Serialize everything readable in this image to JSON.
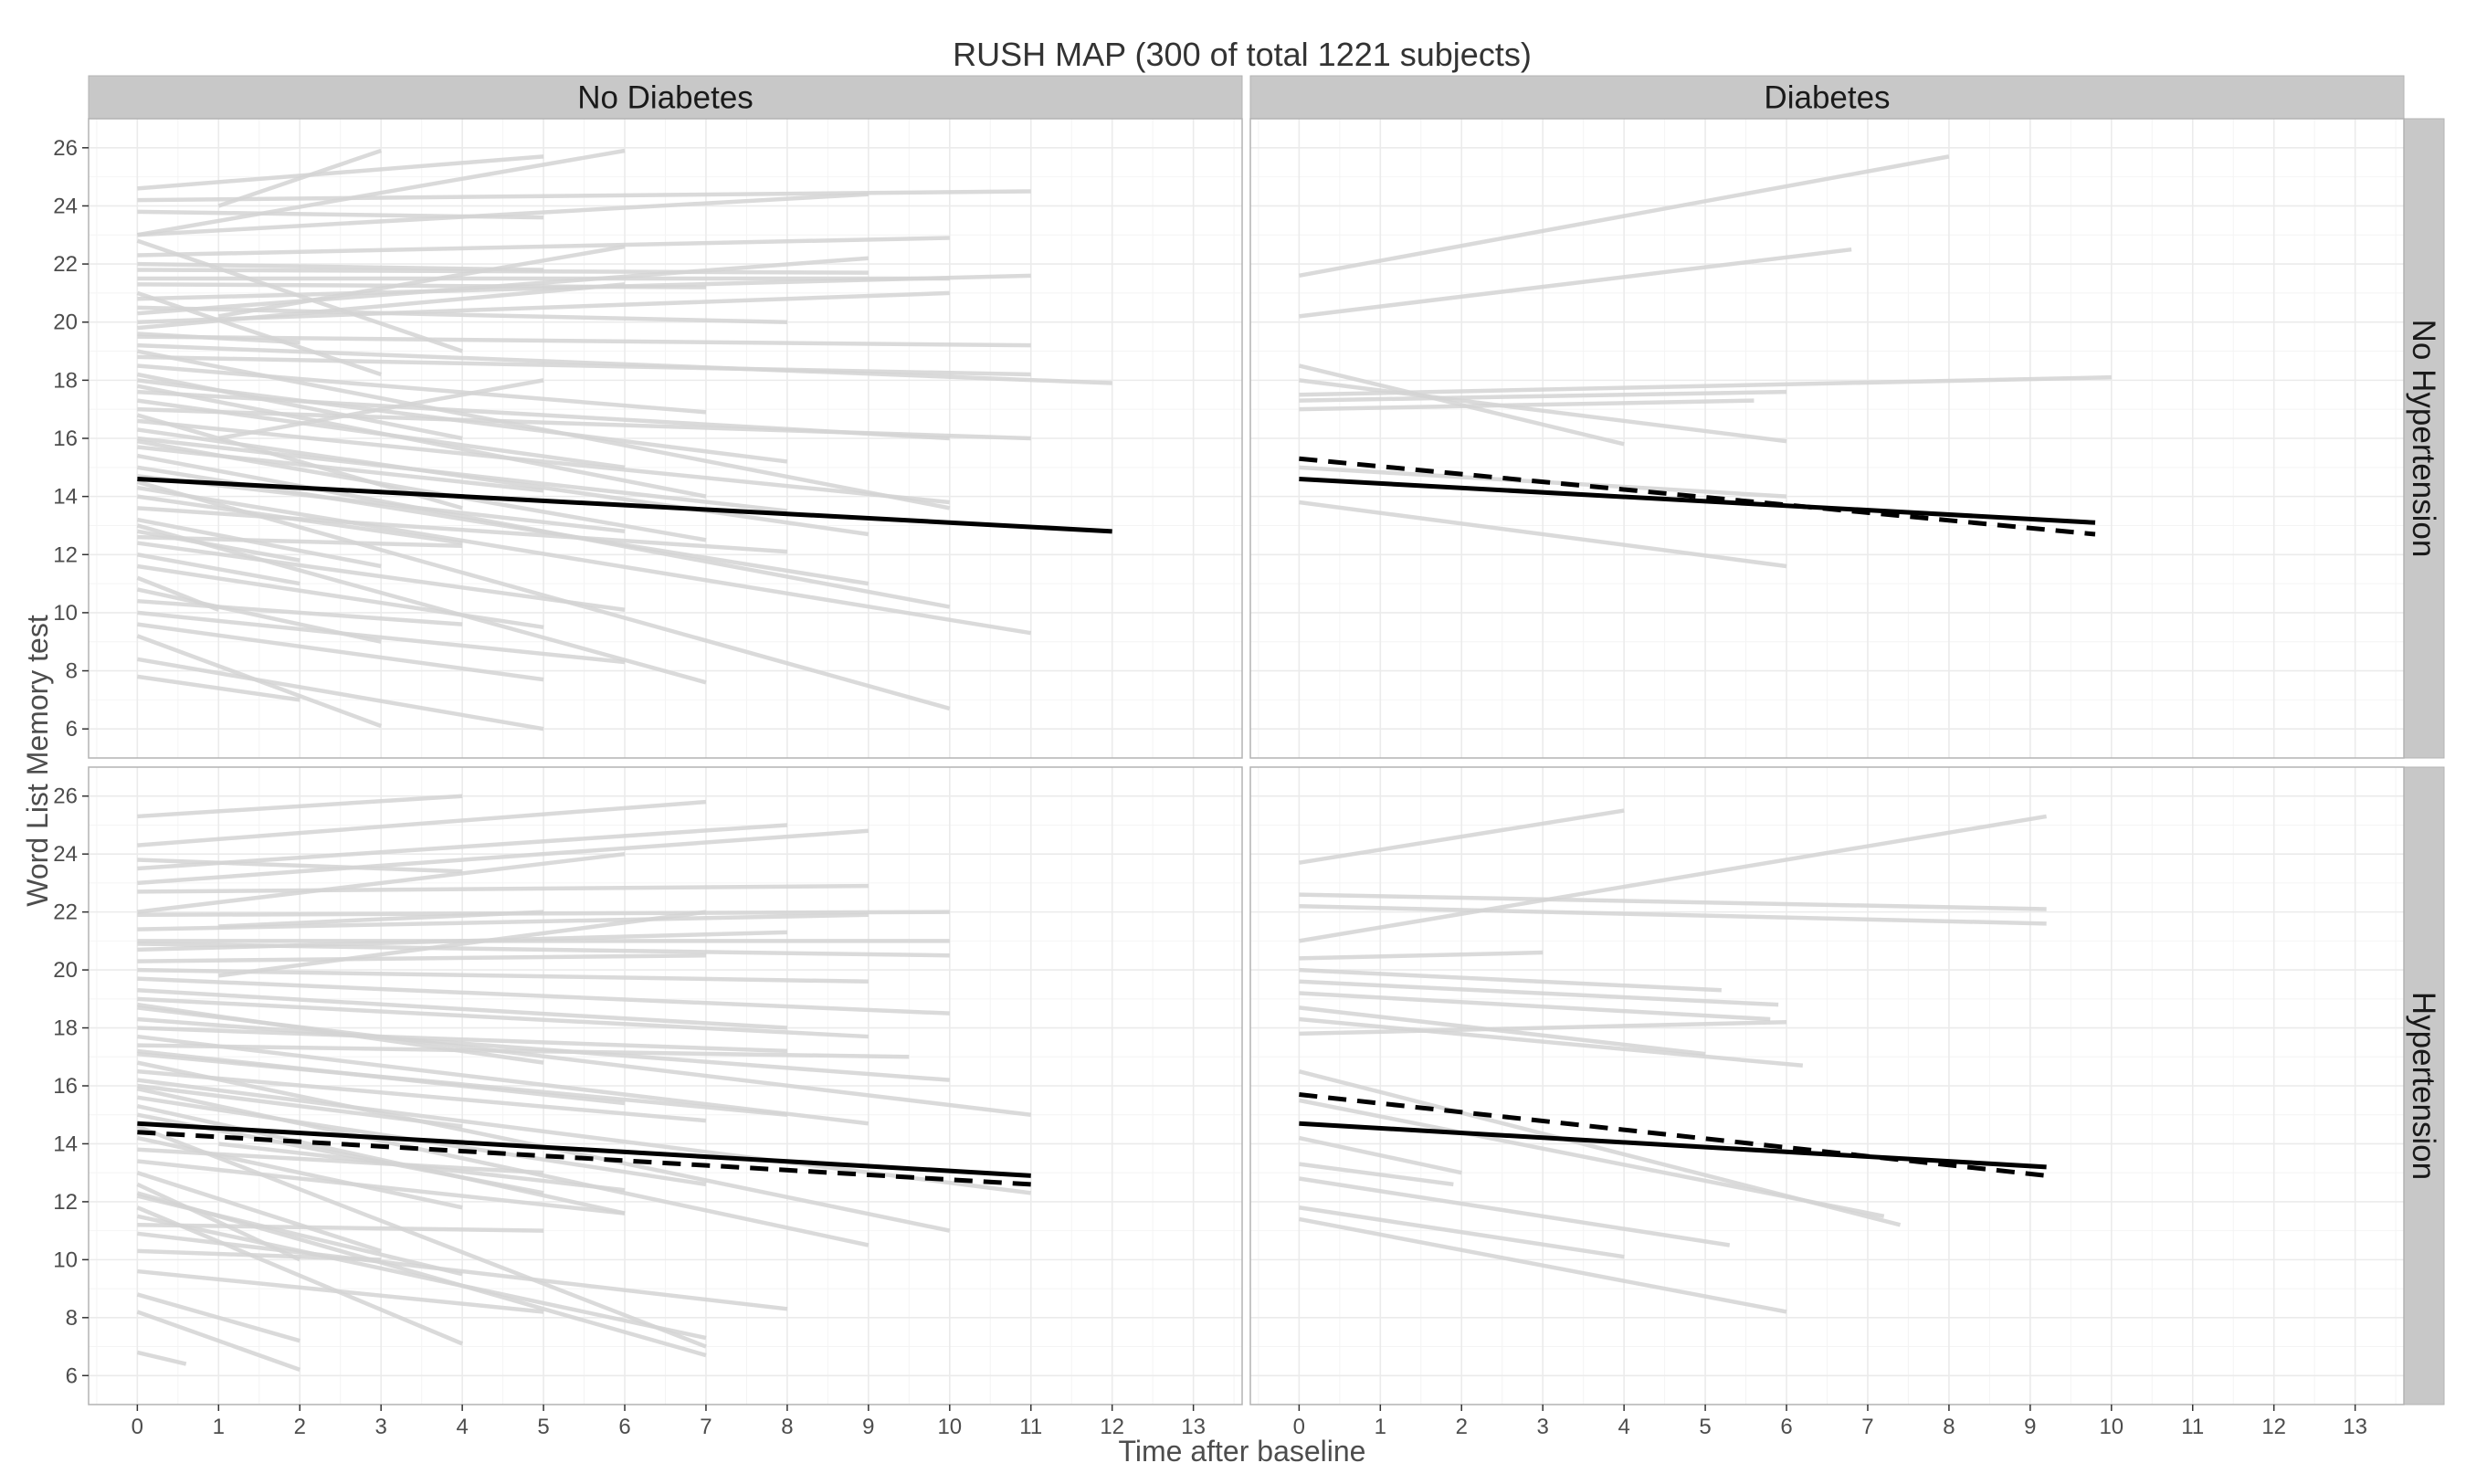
{
  "chart_data": {
    "type": "line",
    "title": "RUSH MAP (300 of total 1221 subjects)",
    "xlabel": "Time after baseline",
    "ylabel": "Word List Memory test",
    "xlim": [
      -0.6,
      13.6
    ],
    "ylim": [
      5.0,
      27.0
    ],
    "x_ticks": [
      0,
      1,
      2,
      3,
      4,
      5,
      6,
      7,
      8,
      9,
      10,
      11,
      12,
      13
    ],
    "y_ticks": [
      6,
      8,
      10,
      12,
      14,
      16,
      18,
      20,
      22,
      24,
      26
    ],
    "grid": true,
    "legend": "none",
    "colors": {
      "subject_line": "#d3d3d3",
      "fit_line": "#000000",
      "strip": "#c8c8c8",
      "panel_border": "#b3b3b3",
      "grid": "#ebebeb"
    },
    "column_facets": [
      "No Diabetes",
      "Diabetes"
    ],
    "row_facets": [
      "No Hypertension",
      "Hypertension"
    ],
    "panels": [
      {
        "column": "No Diabetes",
        "row": "No Hypertension",
        "subjects": [
          [
            0,
            24.6,
            5,
            25.7
          ],
          [
            0,
            23.0,
            6,
            25.9
          ],
          [
            0,
            24.2,
            11,
            24.5
          ],
          [
            0,
            23.8,
            5,
            23.6
          ],
          [
            0,
            23.0,
            9,
            24.4
          ],
          [
            0,
            22.3,
            10,
            22.9
          ],
          [
            0,
            21.8,
            9,
            21.7
          ],
          [
            0,
            21.5,
            10,
            21.5
          ],
          [
            0,
            21.3,
            7,
            21.2
          ],
          [
            0,
            20.8,
            11,
            21.6
          ],
          [
            0,
            20.3,
            9,
            22.2
          ],
          [
            0,
            20.0,
            10,
            21.0
          ],
          [
            0,
            19.8,
            6,
            21.3
          ],
          [
            0,
            19.5,
            11,
            19.2
          ],
          [
            0,
            19.2,
            12,
            17.9
          ],
          [
            0,
            18.8,
            11,
            18.2
          ],
          [
            0,
            18.5,
            7,
            16.9
          ],
          [
            0,
            18.0,
            8,
            15.2
          ],
          [
            0,
            17.6,
            10,
            16.0
          ],
          [
            0,
            17.3,
            6,
            15.0
          ],
          [
            0,
            17.0,
            11,
            16.0
          ],
          [
            0,
            16.6,
            10,
            13.8
          ],
          [
            0,
            16.3,
            9,
            12.7
          ],
          [
            0,
            16.0,
            8,
            13.5
          ],
          [
            0,
            15.7,
            5,
            14.2
          ],
          [
            0,
            15.4,
            10,
            10.2
          ],
          [
            0,
            15.0,
            9,
            11.0
          ],
          [
            0,
            14.7,
            6,
            12.8
          ],
          [
            0,
            14.3,
            11,
            9.3
          ],
          [
            0,
            14.0,
            4,
            12.4
          ],
          [
            0,
            13.6,
            8,
            12.1
          ],
          [
            0,
            13.2,
            3,
            11.6
          ],
          [
            0,
            12.8,
            2,
            11.8
          ],
          [
            0,
            12.4,
            6,
            10.1
          ],
          [
            0,
            12.0,
            2,
            11.0
          ],
          [
            0,
            11.6,
            5,
            9.5
          ],
          [
            0,
            11.2,
            1,
            10.1
          ],
          [
            0,
            10.8,
            3,
            9.0
          ],
          [
            0,
            10.4,
            4,
            9.6
          ],
          [
            0,
            10.0,
            6,
            8.3
          ],
          [
            0,
            9.6,
            5,
            7.7
          ],
          [
            0,
            9.2,
            3,
            6.1
          ],
          [
            0,
            8.4,
            5,
            6.0
          ],
          [
            0,
            7.8,
            2,
            7.0
          ],
          [
            0,
            22.8,
            4,
            19.0
          ],
          [
            0,
            21.0,
            3,
            18.2
          ],
          [
            0,
            20.5,
            8,
            20.0
          ],
          [
            0,
            19.0,
            10,
            13.6
          ],
          [
            0,
            18.2,
            4,
            16.0
          ],
          [
            0,
            17.8,
            7,
            14.0
          ],
          [
            0,
            16.8,
            4,
            13.6
          ],
          [
            0,
            15.9,
            7,
            12.5
          ],
          [
            0,
            14.5,
            10,
            6.7
          ],
          [
            0,
            13.0,
            7,
            7.6
          ],
          [
            1,
            24.0,
            3,
            25.9
          ],
          [
            1,
            20.2,
            6,
            22.6
          ],
          [
            1,
            16.0,
            5,
            18.0
          ],
          [
            0,
            19.6,
            2,
            19.3
          ],
          [
            0,
            22.0,
            5,
            21.8
          ],
          [
            0,
            12.6,
            4,
            12.3
          ]
        ],
        "fits": [
          {
            "style": "solid",
            "x": [
              0,
              12
            ],
            "y": [
              14.6,
              12.8
            ]
          }
        ]
      },
      {
        "column": "Diabetes",
        "row": "No Hypertension",
        "subjects": [
          [
            0,
            21.6,
            8,
            25.7
          ],
          [
            0,
            20.2,
            6.8,
            22.5
          ],
          [
            0,
            18.5,
            4,
            15.8
          ],
          [
            0,
            18.0,
            6,
            15.9
          ],
          [
            0,
            17.5,
            10,
            18.1
          ],
          [
            0,
            17.3,
            6,
            17.6
          ],
          [
            0,
            17.0,
            5.6,
            17.3
          ],
          [
            0,
            15.0,
            6,
            14.0
          ],
          [
            0,
            13.8,
            6,
            11.6
          ]
        ],
        "fits": [
          {
            "style": "solid",
            "x": [
              0,
              9.8
            ],
            "y": [
              14.6,
              13.1
            ]
          },
          {
            "style": "dashed",
            "x": [
              0,
              9.8
            ],
            "y": [
              15.3,
              12.7
            ]
          }
        ]
      },
      {
        "column": "No Diabetes",
        "row": "Hypertension",
        "subjects": [
          [
            0,
            25.3,
            4,
            26.0
          ],
          [
            0,
            24.3,
            7,
            25.8
          ],
          [
            0,
            23.5,
            8,
            25.0
          ],
          [
            0,
            23.0,
            9,
            24.8
          ],
          [
            0,
            22.7,
            9,
            22.9
          ],
          [
            0,
            21.9,
            10,
            22.0
          ],
          [
            0,
            21.4,
            9,
            21.9
          ],
          [
            0,
            21.0,
            10,
            21.0
          ],
          [
            0,
            20.7,
            8,
            21.3
          ],
          [
            0,
            20.3,
            7,
            20.5
          ],
          [
            0,
            20.0,
            9,
            19.6
          ],
          [
            0,
            19.7,
            10,
            18.5
          ],
          [
            0,
            19.3,
            8,
            18.0
          ],
          [
            0,
            19.0,
            9,
            17.7
          ],
          [
            0,
            18.7,
            11,
            15.0
          ],
          [
            0,
            18.3,
            10,
            16.2
          ],
          [
            0,
            18.0,
            8,
            17.2
          ],
          [
            0,
            17.7,
            9,
            14.7
          ],
          [
            0,
            17.4,
            9.5,
            17.0
          ],
          [
            0,
            17.1,
            8,
            15.0
          ],
          [
            0,
            16.8,
            10,
            11.0
          ],
          [
            0,
            16.5,
            7,
            14.8
          ],
          [
            0,
            16.2,
            11,
            12.3
          ],
          [
            0,
            15.9,
            9,
            10.5
          ],
          [
            0,
            15.6,
            7,
            12.6
          ],
          [
            0,
            15.3,
            6,
            11.6
          ],
          [
            0,
            15.0,
            5,
            12.3
          ],
          [
            0,
            14.6,
            7,
            7.0
          ],
          [
            0,
            14.2,
            4,
            11.8
          ],
          [
            0,
            13.8,
            5,
            13.0
          ],
          [
            0,
            13.4,
            6,
            11.6
          ],
          [
            0,
            13.0,
            3,
            10.3
          ],
          [
            0,
            12.6,
            2,
            10.0
          ],
          [
            0,
            12.2,
            4,
            9.5
          ],
          [
            0,
            11.8,
            4,
            7.1
          ],
          [
            0,
            11.5,
            7,
            7.3
          ],
          [
            0,
            11.2,
            5,
            11.0
          ],
          [
            0,
            10.9,
            8,
            8.3
          ],
          [
            0,
            10.3,
            3,
            10.0
          ],
          [
            0,
            9.6,
            5,
            8.2
          ],
          [
            0,
            8.8,
            2,
            7.2
          ],
          [
            0,
            8.2,
            2,
            6.2
          ],
          [
            0,
            6.8,
            0.6,
            6.4
          ],
          [
            0,
            22.0,
            6,
            24.0
          ],
          [
            0,
            20.9,
            10,
            20.5
          ],
          [
            0,
            18.8,
            5,
            16.8
          ],
          [
            0,
            17.2,
            6,
            15.4
          ],
          [
            0,
            16.0,
            4,
            14.6
          ],
          [
            1,
            21.5,
            5,
            22.0
          ],
          [
            1,
            19.8,
            7,
            22.0
          ],
          [
            1,
            14.0,
            6,
            12.4
          ],
          [
            0,
            23.8,
            4,
            23.4
          ],
          [
            0,
            12.3,
            7,
            6.7
          ]
        ],
        "fits": [
          {
            "style": "solid",
            "x": [
              0,
              11
            ],
            "y": [
              14.7,
              12.9
            ]
          },
          {
            "style": "dashed",
            "x": [
              0,
              11
            ],
            "y": [
              14.4,
              12.6
            ]
          }
        ]
      },
      {
        "column": "Diabetes",
        "row": "Hypertension",
        "subjects": [
          [
            0,
            23.7,
            4,
            25.5
          ],
          [
            0,
            22.6,
            9.2,
            22.1
          ],
          [
            0,
            22.2,
            9.2,
            21.6
          ],
          [
            0,
            21.0,
            9.2,
            25.3
          ],
          [
            0,
            20.4,
            3,
            20.6
          ],
          [
            0,
            20.0,
            5.2,
            19.3
          ],
          [
            0,
            19.6,
            5.9,
            18.8
          ],
          [
            0,
            19.2,
            5.8,
            18.3
          ],
          [
            0,
            18.7,
            5.0,
            17.1
          ],
          [
            0,
            18.3,
            6.2,
            16.7
          ],
          [
            0,
            17.8,
            6.0,
            18.2
          ],
          [
            0,
            16.5,
            7.4,
            11.2
          ],
          [
            0,
            15.5,
            7.2,
            11.5
          ],
          [
            0,
            14.2,
            2,
            13.0
          ],
          [
            0,
            13.3,
            1.9,
            12.6
          ],
          [
            0,
            12.8,
            5.3,
            10.5
          ],
          [
            0,
            11.4,
            6,
            8.2
          ],
          [
            0,
            11.8,
            4,
            10.1
          ]
        ],
        "fits": [
          {
            "style": "solid",
            "x": [
              0,
              9.2
            ],
            "y": [
              14.7,
              13.2
            ]
          },
          {
            "style": "dashed",
            "x": [
              0,
              9.2
            ],
            "y": [
              15.7,
              12.9
            ]
          }
        ]
      }
    ]
  }
}
